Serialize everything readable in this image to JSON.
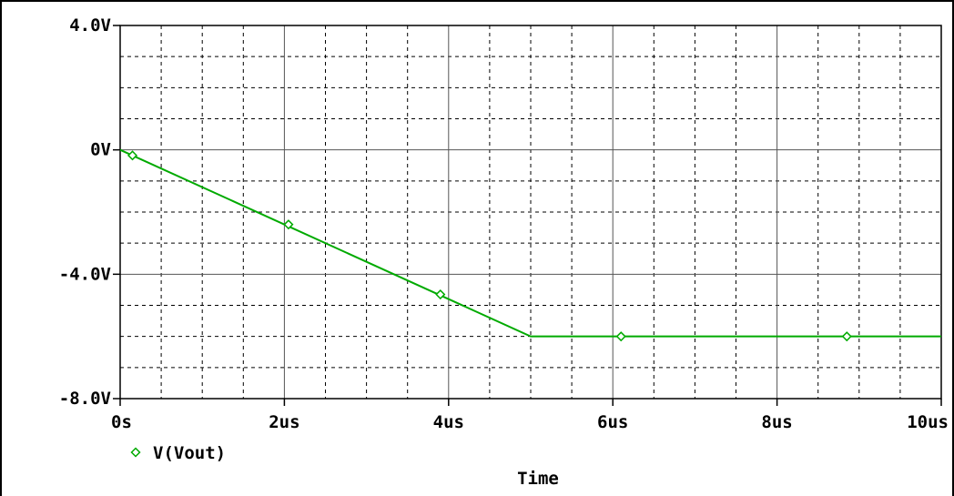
{
  "chart_data": {
    "type": "line",
    "xlabel": "Time",
    "ylabel": "",
    "xlim": [
      0,
      10
    ],
    "ylim": [
      -8,
      4
    ],
    "x_unit": "us",
    "y_unit": "V",
    "x_ticks": [
      0,
      2,
      4,
      6,
      8,
      10
    ],
    "x_tick_labels": [
      "0s",
      "2us",
      "4us",
      "6us",
      "8us",
      "10us"
    ],
    "y_ticks": [
      4,
      0,
      -4,
      -8
    ],
    "y_tick_labels": [
      "4.0V",
      "0V",
      "-4.0V",
      "-8.0V"
    ],
    "x_minor_step": 0.5,
    "y_minor_step": 1,
    "grid": true,
    "legend_position": "bottom-left",
    "series": [
      {
        "name": "V(Vout)",
        "color": "#00aa00",
        "marker": "diamond",
        "x": [
          0,
          5,
          10
        ],
        "y": [
          0,
          -6,
          -6
        ],
        "markers_x": [
          0.15,
          2.05,
          3.9,
          6.1,
          8.85
        ],
        "markers_y": [
          -0.18,
          -2.4,
          -4.65,
          -6,
          -6
        ]
      }
    ]
  }
}
